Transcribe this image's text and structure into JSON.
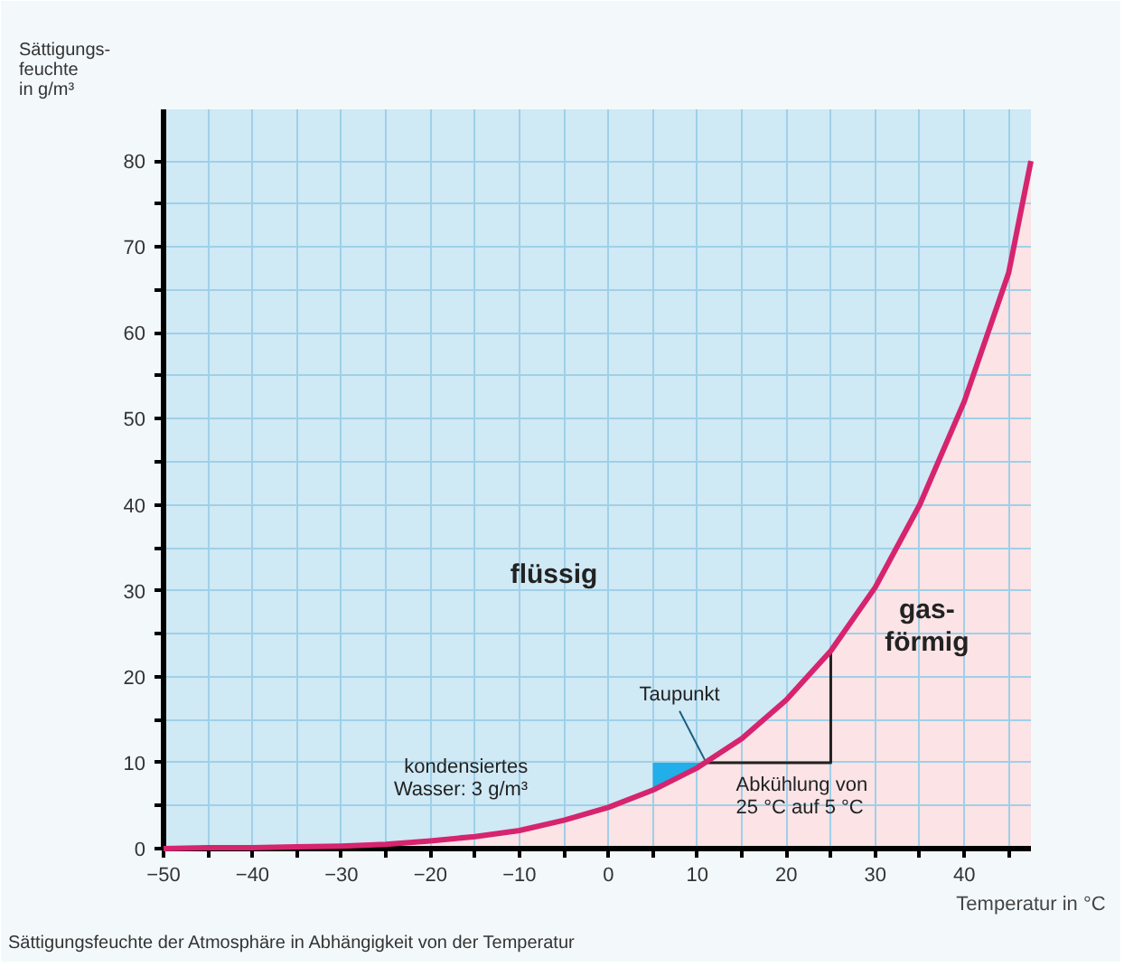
{
  "chart_data": {
    "type": "line",
    "xlabel": "Temperatur in °C",
    "ylabel": "Sättigungs-\nfeuchte\nin g/m³",
    "x": [
      -50,
      -45,
      -40,
      -35,
      -30,
      -25,
      -20,
      -15,
      -10,
      -5,
      0,
      5,
      10,
      15,
      20,
      25,
      30,
      35,
      40,
      45,
      47.5
    ],
    "series": [
      {
        "color": "#d6246e",
        "values": [
          0,
          0.1,
          0.1,
          0.2,
          0.3,
          0.5,
          0.9,
          1.4,
          2.1,
          3.3,
          4.8,
          6.8,
          9.4,
          12.8,
          17.3,
          23,
          30.4,
          40,
          52,
          67,
          80
        ]
      },
      {
        "type": "line",
        "color": "#222222",
        "x": [
          25,
          25,
          11
        ],
        "values": [
          23,
          10,
          10
        ]
      },
      {
        "type": "area",
        "color": "#22aee8",
        "x": [
          5,
          10,
          11
        ],
        "values": [
          10,
          10,
          10
        ]
      }
    ],
    "xlim": [
      -50,
      47.5
    ],
    "ylim": [
      0,
      86
    ],
    "xticks": [
      -50,
      {
        "value": -45,
        "label": null
      },
      -40,
      {
        "value": -35,
        "label": null
      },
      -30,
      {
        "value": -25,
        "label": null
      },
      -20,
      {
        "value": -15,
        "label": null
      },
      -10,
      {
        "value": -5,
        "label": null
      },
      0,
      {
        "value": 5,
        "label": null
      },
      10,
      {
        "value": 15,
        "label": null
      },
      20,
      {
        "value": 25,
        "label": null
      },
      30,
      {
        "value": 35,
        "label": null
      },
      40,
      {
        "value": 45,
        "label": null
      }
    ],
    "yticks": [
      0,
      {
        "value": 5,
        "label": null
      },
      10,
      {
        "value": 15,
        "label": null
      },
      20,
      {
        "value": 25,
        "label": null
      },
      30,
      {
        "value": 35,
        "label": null
      },
      40,
      {
        "value": 45,
        "label": null
      },
      50,
      {
        "value": 55,
        "label": null
      },
      60,
      {
        "value": 65,
        "label": null
      },
      70,
      {
        "value": 75,
        "label": null
      },
      80
    ],
    "grid": true,
    "marker": "none",
    "line_style": "solid",
    "annotations": [
      "flüssig",
      "gas-\nförmig",
      {
        "text": "Taupunkt",
        "x": 11,
        "y": 10
      },
      "kondensiertes\nWasser: 3 g/m³",
      "Abkühlung von\n25 °C auf 5 °C",
      "Sättigungsfeuchte der Atmosphäre in Abhängigkeit von der Temperatur"
    ]
  }
}
